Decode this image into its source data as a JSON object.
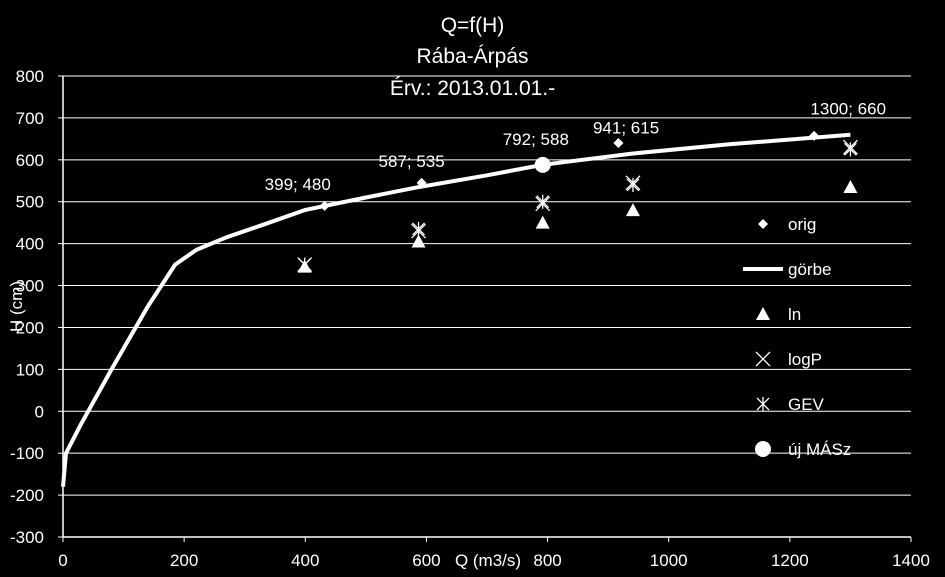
{
  "chart_data": {
    "type": "scatter",
    "title_lines": [
      "Q=f(H)",
      "Rába-Árpás",
      "Érv.: 2013.01.01.-"
    ],
    "xlabel": "Q (m3/s)",
    "ylabel": "H (cm)",
    "xlim": [
      0,
      1400
    ],
    "ylim": [
      -300,
      800
    ],
    "x_ticks": [
      0,
      200,
      400,
      600,
      800,
      1000,
      1200,
      1400
    ],
    "y_ticks": [
      -300,
      -200,
      -100,
      0,
      100,
      200,
      300,
      400,
      500,
      600,
      700,
      800
    ],
    "grid": "horizontal",
    "legend_position": "right",
    "series": [
      {
        "name": "orig",
        "marker": "diamond",
        "points": [
          [
            432,
            490
          ],
          [
            592,
            545
          ],
          [
            917,
            640
          ],
          [
            1240,
            657
          ]
        ]
      },
      {
        "name": "görbe",
        "marker": "line",
        "points": [
          [
            0,
            -180
          ],
          [
            5,
            -100
          ],
          [
            30,
            -30
          ],
          [
            80,
            100
          ],
          [
            140,
            250
          ],
          [
            185,
            350
          ],
          [
            220,
            385
          ],
          [
            270,
            415
          ],
          [
            330,
            445
          ],
          [
            399,
            480
          ],
          [
            500,
            510
          ],
          [
            587,
            535
          ],
          [
            700,
            563
          ],
          [
            792,
            588
          ],
          [
            941,
            615
          ],
          [
            1100,
            637
          ],
          [
            1300,
            660
          ]
        ]
      },
      {
        "name": "ln",
        "marker": "triangle",
        "points": [
          [
            399,
            345
          ],
          [
            587,
            405
          ],
          [
            792,
            450
          ],
          [
            941,
            480
          ],
          [
            1300,
            535
          ]
        ]
      },
      {
        "name": "logP",
        "marker": "x",
        "points": [
          [
            399,
            350
          ],
          [
            587,
            430
          ],
          [
            792,
            495
          ],
          [
            941,
            545
          ],
          [
            1300,
            630
          ]
        ]
      },
      {
        "name": "GEV",
        "marker": "star",
        "points": [
          [
            399,
            350
          ],
          [
            587,
            435
          ],
          [
            792,
            500
          ],
          [
            941,
            540
          ],
          [
            1300,
            625
          ]
        ]
      },
      {
        "name": "új MÁSz",
        "marker": "circle",
        "points": [
          [
            792,
            588
          ]
        ]
      }
    ],
    "annotations": [
      {
        "text": "399; 480",
        "x": 399,
        "y": 480
      },
      {
        "text": "587; 535",
        "x": 587,
        "y": 535
      },
      {
        "text": "792; 588",
        "x": 792,
        "y": 588
      },
      {
        "text": "941; 615",
        "x": 941,
        "y": 615
      },
      {
        "text": "1300; 660",
        "x": 1300,
        "y": 660
      }
    ],
    "colors": {
      "background": "#000000",
      "foreground": "#ffffff",
      "grid": "#ffffff"
    }
  }
}
